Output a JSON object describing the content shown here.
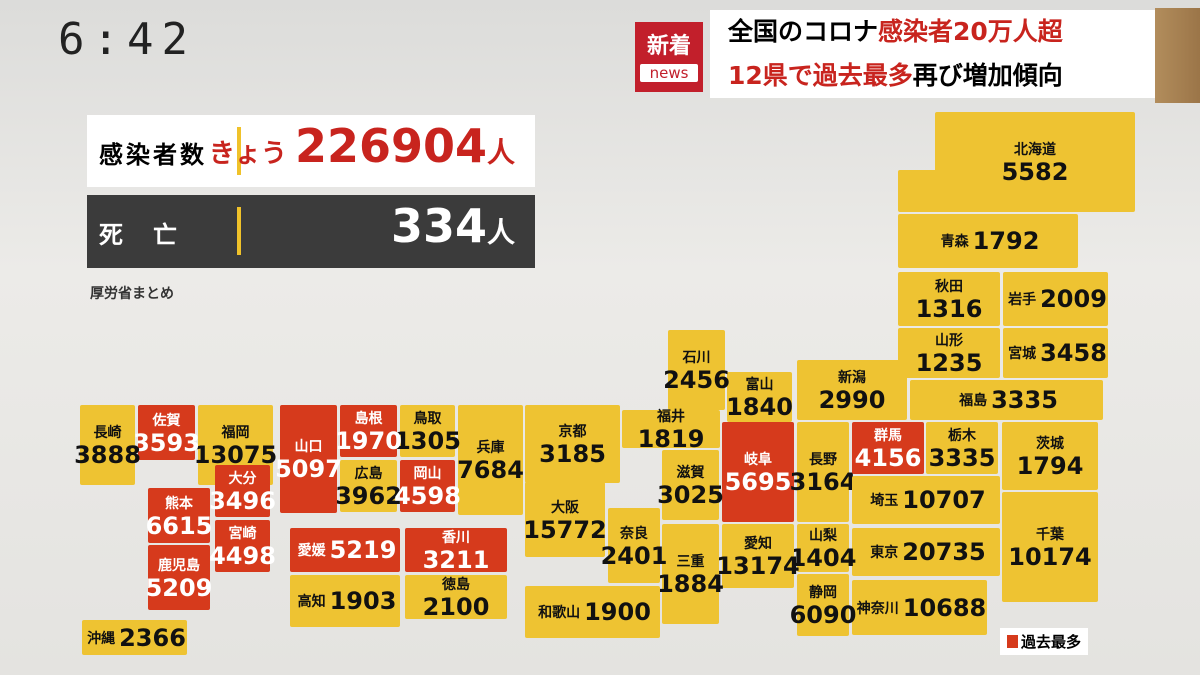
{
  "clock": "6:42",
  "badge": {
    "top": "新着",
    "bottom": "news"
  },
  "headline": {
    "line1": [
      "全国のコロナ",
      "感染者20万人超"
    ],
    "line2": [
      "12県で過去最多",
      "再び増加傾向"
    ]
  },
  "summary": {
    "cases": {
      "label": "感染者数",
      "today": "きょう",
      "value": 226904,
      "unit": "人"
    },
    "deaths": {
      "label": "死　亡",
      "value": 334,
      "unit": "人"
    },
    "source": "厚労省まとめ"
  },
  "prefectures": [
    {
      "name": "北海道",
      "count": 5582,
      "record": false
    },
    {
      "name": "青森",
      "count": 1792,
      "record": false
    },
    {
      "name": "秋田",
      "count": 1316,
      "record": false
    },
    {
      "name": "岩手",
      "count": 2009,
      "record": false
    },
    {
      "name": "山形",
      "count": 1235,
      "record": false
    },
    {
      "name": "宮城",
      "count": 3458,
      "record": false
    },
    {
      "name": "福島",
      "count": 3335,
      "record": false
    },
    {
      "name": "新潟",
      "count": 2990,
      "record": false
    },
    {
      "name": "富山",
      "count": 1840,
      "record": false
    },
    {
      "name": "石川",
      "count": 2456,
      "record": false
    },
    {
      "name": "福井",
      "count": 1819,
      "record": false
    },
    {
      "name": "岐阜",
      "count": 5695,
      "record": true
    },
    {
      "name": "長野",
      "count": 3164,
      "record": false
    },
    {
      "name": "群馬",
      "count": 4156,
      "record": true
    },
    {
      "name": "栃木",
      "count": 3335,
      "record": false
    },
    {
      "name": "茨城",
      "count": 1794,
      "record": false
    },
    {
      "name": "埼玉",
      "count": 10707,
      "record": false
    },
    {
      "name": "千葉",
      "count": 10174,
      "record": false
    },
    {
      "name": "東京",
      "count": 20735,
      "record": false
    },
    {
      "name": "神奈川",
      "count": 10688,
      "record": false
    },
    {
      "name": "山梨",
      "count": 1404,
      "record": false
    },
    {
      "name": "静岡",
      "count": 6090,
      "record": false
    },
    {
      "name": "愛知",
      "count": 13174,
      "record": false
    },
    {
      "name": "三重",
      "count": 1884,
      "record": false
    },
    {
      "name": "滋賀",
      "count": 3025,
      "record": false
    },
    {
      "name": "京都",
      "count": 3185,
      "record": false
    },
    {
      "name": "大阪",
      "count": 15772,
      "record": false
    },
    {
      "name": "奈良",
      "count": 2401,
      "record": false
    },
    {
      "name": "和歌山",
      "count": 1900,
      "record": false
    },
    {
      "name": "兵庫",
      "count": 7684,
      "record": false
    },
    {
      "name": "鳥取",
      "count": 1305,
      "record": false
    },
    {
      "name": "島根",
      "count": 1970,
      "record": true
    },
    {
      "name": "広島",
      "count": 3962,
      "record": false
    },
    {
      "name": "岡山",
      "count": 4598,
      "record": true
    },
    {
      "name": "山口",
      "count": 5097,
      "record": true
    },
    {
      "name": "愛媛",
      "count": 5219,
      "record": true
    },
    {
      "name": "香川",
      "count": 3211,
      "record": true
    },
    {
      "name": "高知",
      "count": 1903,
      "record": false
    },
    {
      "name": "徳島",
      "count": 2100,
      "record": false
    },
    {
      "name": "福岡",
      "count": 13075,
      "record": false
    },
    {
      "name": "佐賀",
      "count": 3593,
      "record": true
    },
    {
      "name": "長崎",
      "count": 3888,
      "record": false
    },
    {
      "name": "大分",
      "count": 3496,
      "record": true
    },
    {
      "name": "熊本",
      "count": 6615,
      "record": true
    },
    {
      "name": "宮崎",
      "count": 4498,
      "record": true
    },
    {
      "name": "鹿児島",
      "count": 5209,
      "record": true
    },
    {
      "name": "沖縄",
      "count": 2366,
      "record": false
    }
  ],
  "legend": {
    "label": "過去最多",
    "record_color": "#d63a1c",
    "tile_color": "#eec332"
  }
}
